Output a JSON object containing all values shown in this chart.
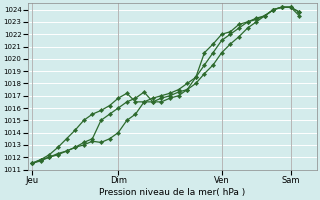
{
  "xlabel": "Pression niveau de la mer( hPa )",
  "ylim": [
    1011,
    1024.5
  ],
  "yticks": [
    1011,
    1012,
    1013,
    1014,
    1015,
    1016,
    1017,
    1018,
    1019,
    1020,
    1021,
    1022,
    1023,
    1024
  ],
  "bg_color": "#d4ecec",
  "grid_color": "#ffffff",
  "line_color": "#2d6a2d",
  "xtick_labels": [
    "Jeu",
    "Dim",
    "Ven",
    "Sam"
  ],
  "xtick_positions": [
    0,
    10,
    22,
    30
  ],
  "xlim": [
    -0.5,
    33
  ],
  "series1_x": [
    0,
    1,
    2,
    3,
    4,
    5,
    6,
    7,
    8,
    9,
    10,
    11,
    12,
    13,
    14,
    15,
    16,
    17,
    18,
    19,
    20,
    21,
    22,
    23,
    24,
    25,
    26,
    27,
    28,
    29,
    30,
    31
  ],
  "series1_y": [
    1011.5,
    1011.8,
    1012.0,
    1012.3,
    1012.5,
    1012.8,
    1013.0,
    1013.3,
    1013.2,
    1013.5,
    1014.0,
    1015.0,
    1015.5,
    1016.5,
    1016.5,
    1016.8,
    1017.0,
    1017.3,
    1017.5,
    1018.0,
    1018.8,
    1019.5,
    1020.5,
    1021.2,
    1021.8,
    1022.5,
    1023.0,
    1023.5,
    1024.0,
    1024.2,
    1024.2,
    1023.8
  ],
  "series2_x": [
    0,
    1,
    2,
    3,
    4,
    5,
    6,
    7,
    8,
    9,
    10,
    11,
    12,
    13,
    14,
    15,
    16,
    17,
    18,
    19,
    20,
    21,
    22,
    23,
    24,
    25,
    26,
    27,
    28,
    29,
    30,
    31
  ],
  "series2_y": [
    1011.5,
    1011.8,
    1012.2,
    1012.8,
    1013.5,
    1014.2,
    1015.0,
    1015.5,
    1015.8,
    1016.2,
    1016.8,
    1017.2,
    1016.5,
    1016.5,
    1016.8,
    1017.0,
    1017.2,
    1017.5,
    1018.0,
    1018.5,
    1019.5,
    1020.5,
    1021.5,
    1022.0,
    1022.5,
    1023.0,
    1023.3,
    1023.5,
    1024.0,
    1024.2,
    1024.2,
    1023.8
  ],
  "series3_x": [
    0,
    1,
    2,
    3,
    4,
    5,
    6,
    7,
    8,
    9,
    10,
    11,
    12,
    13,
    14,
    15,
    16,
    17,
    18,
    19,
    20,
    21,
    22,
    23,
    24,
    25,
    26,
    27,
    28,
    29,
    30,
    31
  ],
  "series3_y": [
    1011.5,
    1011.7,
    1012.0,
    1012.2,
    1012.5,
    1012.8,
    1013.2,
    1013.5,
    1015.0,
    1015.5,
    1016.0,
    1016.5,
    1016.8,
    1017.3,
    1016.5,
    1016.5,
    1016.8,
    1017.0,
    1017.5,
    1018.5,
    1020.5,
    1021.2,
    1022.0,
    1022.2,
    1022.8,
    1023.0,
    1023.2,
    1023.5,
    1024.0,
    1024.2,
    1024.2,
    1023.5
  ]
}
